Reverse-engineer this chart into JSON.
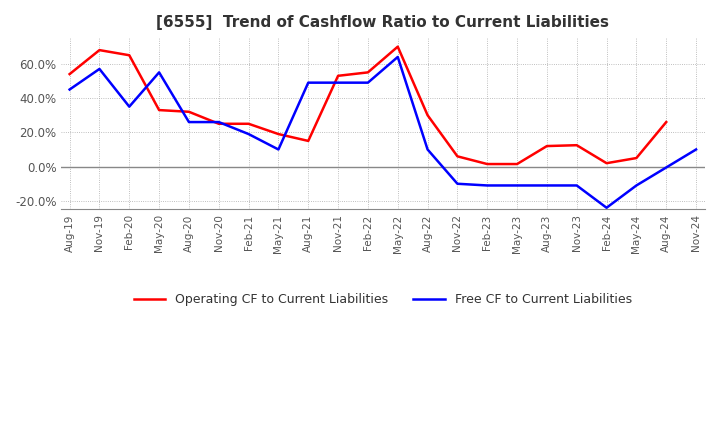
{
  "title": "[6555]  Trend of Cashflow Ratio to Current Liabilities",
  "x_labels": [
    "Aug-19",
    "Nov-19",
    "Feb-20",
    "May-20",
    "Aug-20",
    "Nov-20",
    "Feb-21",
    "May-21",
    "Aug-21",
    "Nov-21",
    "Feb-22",
    "May-22",
    "Aug-22",
    "Nov-22",
    "Feb-23",
    "May-23",
    "Aug-23",
    "Nov-23",
    "Feb-24",
    "May-24",
    "Aug-24",
    "Nov-24"
  ],
  "operating_cf": [
    54.0,
    68.0,
    65.0,
    33.0,
    32.0,
    25.0,
    25.0,
    19.0,
    15.0,
    53.0,
    55.0,
    70.0,
    30.0,
    6.0,
    1.5,
    1.5,
    12.0,
    12.5,
    2.0,
    5.0,
    26.0,
    null
  ],
  "free_cf": [
    45.0,
    57.0,
    35.0,
    55.0,
    26.0,
    26.0,
    19.0,
    10.0,
    49.0,
    49.0,
    49.0,
    64.0,
    10.0,
    -10.0,
    -11.0,
    -11.0,
    -11.0,
    -11.0,
    -24.0,
    -11.0,
    null,
    10.0
  ],
  "ylim": [
    -25.0,
    75.0
  ],
  "y_ticks": [
    -20.0,
    0.0,
    20.0,
    40.0,
    60.0
  ],
  "operating_color": "#ff0000",
  "free_color": "#0000ff",
  "background_color": "#ffffff",
  "grid_color": "#aaaaaa",
  "zero_line_color": "#888888"
}
